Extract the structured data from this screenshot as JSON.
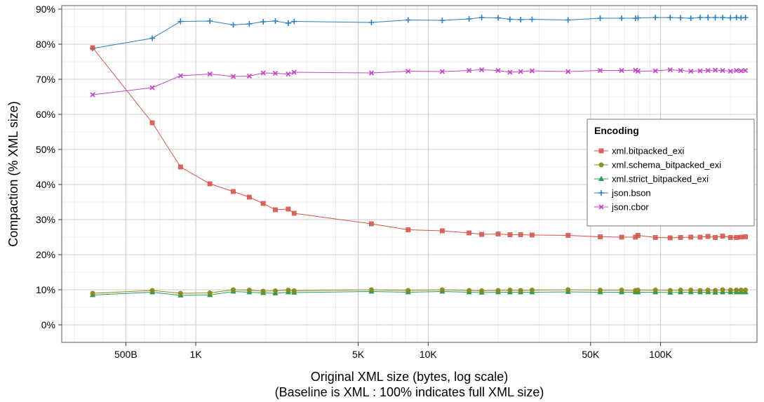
{
  "chart_data": {
    "type": "line",
    "xlabel": "Original  XML  size (bytes, log scale)",
    "xlabel_sub": "(Baseline is  XML : 100% indicates full  XML  size)",
    "ylabel": "Compaction (%  XML  size)",
    "x_scale": "log",
    "xlim": [
      265,
      260000
    ],
    "ylim": [
      -5,
      91
    ],
    "x_ticks": [
      {
        "value": 500,
        "label": "500B"
      },
      {
        "value": 1000,
        "label": "1K"
      },
      {
        "value": 5000,
        "label": "5K"
      },
      {
        "value": 10000,
        "label": "10K"
      },
      {
        "value": 50000,
        "label": "50K"
      },
      {
        "value": 100000,
        "label": "100K"
      }
    ],
    "y_ticks": [
      {
        "value": 0,
        "label": "0%"
      },
      {
        "value": 10,
        "label": "10%"
      },
      {
        "value": 20,
        "label": "20%"
      },
      {
        "value": 30,
        "label": "30%"
      },
      {
        "value": 40,
        "label": "40%"
      },
      {
        "value": 50,
        "label": "50%"
      },
      {
        "value": 60,
        "label": "60%"
      },
      {
        "value": 70,
        "label": "70%"
      },
      {
        "value": 80,
        "label": "80%"
      },
      {
        "value": 90,
        "label": "90%"
      }
    ],
    "grid": true,
    "legend": {
      "title": "Encoding",
      "position": "right"
    },
    "x": [
      360,
      650,
      860,
      1150,
      1450,
      1700,
      1950,
      2200,
      2500,
      2650,
      5700,
      8200,
      11500,
      15000,
      17000,
      20000,
      22500,
      25000,
      28000,
      40000,
      55000,
      68000,
      78000,
      80000,
      95000,
      110000,
      122000,
      135000,
      148000,
      160000,
      172000,
      185000,
      200000,
      212000,
      222000,
      232000
    ],
    "series": [
      {
        "name": "xml.bitpacked_exi",
        "color": "#d6524a",
        "marker": "square",
        "values": [
          79.0,
          57.6,
          45.0,
          40.2,
          38.0,
          36.4,
          34.6,
          32.8,
          33.0,
          31.8,
          28.8,
          27.1,
          26.8,
          26.2,
          25.8,
          25.9,
          25.7,
          25.7,
          25.6,
          25.5,
          25.1,
          25.0,
          25.0,
          25.5,
          24.9,
          24.8,
          24.9,
          25.0,
          25.0,
          25.2,
          24.9,
          25.3,
          24.9,
          24.9,
          25.0,
          25.1
        ]
      },
      {
        "name": "xml.schema_bitpacked_exi",
        "color": "#8a8a1a",
        "marker": "circle",
        "values": [
          9.0,
          9.8,
          9.0,
          9.1,
          10.0,
          9.9,
          9.6,
          9.7,
          9.9,
          9.7,
          10.0,
          9.8,
          10.0,
          9.8,
          9.7,
          9.8,
          9.9,
          9.8,
          9.9,
          10.0,
          9.9,
          9.9,
          9.8,
          9.9,
          9.9,
          9.8,
          9.9,
          9.9,
          9.8,
          9.9,
          9.8,
          10.0,
          9.9,
          9.9,
          9.9,
          9.9
        ]
      },
      {
        "name": "xml.strict_bitpacked_exi",
        "color": "#2a9a56",
        "marker": "triangle",
        "values": [
          8.5,
          9.3,
          8.4,
          8.5,
          9.5,
          9.3,
          9.1,
          9.0,
          9.3,
          9.2,
          9.5,
          9.3,
          9.5,
          9.3,
          9.2,
          9.3,
          9.3,
          9.3,
          9.3,
          9.4,
          9.3,
          9.3,
          9.3,
          9.3,
          9.3,
          9.2,
          9.3,
          9.3,
          9.3,
          9.3,
          9.2,
          9.3,
          9.3,
          9.3,
          9.3,
          9.3
        ]
      },
      {
        "name": "json.bson",
        "color": "#2a7ec2",
        "marker": "plus",
        "values": [
          78.8,
          81.7,
          86.5,
          86.6,
          85.5,
          85.8,
          86.4,
          86.6,
          86.0,
          86.5,
          86.2,
          86.9,
          86.8,
          87.2,
          87.6,
          87.5,
          87.1,
          87.0,
          87.1,
          86.9,
          87.4,
          87.4,
          87.4,
          87.5,
          87.6,
          87.6,
          87.5,
          87.4,
          87.6,
          87.6,
          87.6,
          87.6,
          87.5,
          87.6,
          87.5,
          87.6
        ]
      },
      {
        "name": "json.cbor",
        "color": "#c544c8",
        "marker": "x",
        "values": [
          65.6,
          67.6,
          71.0,
          71.5,
          70.8,
          70.9,
          71.8,
          71.7,
          71.5,
          72.0,
          71.8,
          72.3,
          72.2,
          72.5,
          72.7,
          72.5,
          72.0,
          72.2,
          72.4,
          72.2,
          72.5,
          72.5,
          72.6,
          72.3,
          72.4,
          72.7,
          72.5,
          72.3,
          72.4,
          72.5,
          72.6,
          72.5,
          72.3,
          72.5,
          72.4,
          72.5
        ]
      }
    ]
  }
}
